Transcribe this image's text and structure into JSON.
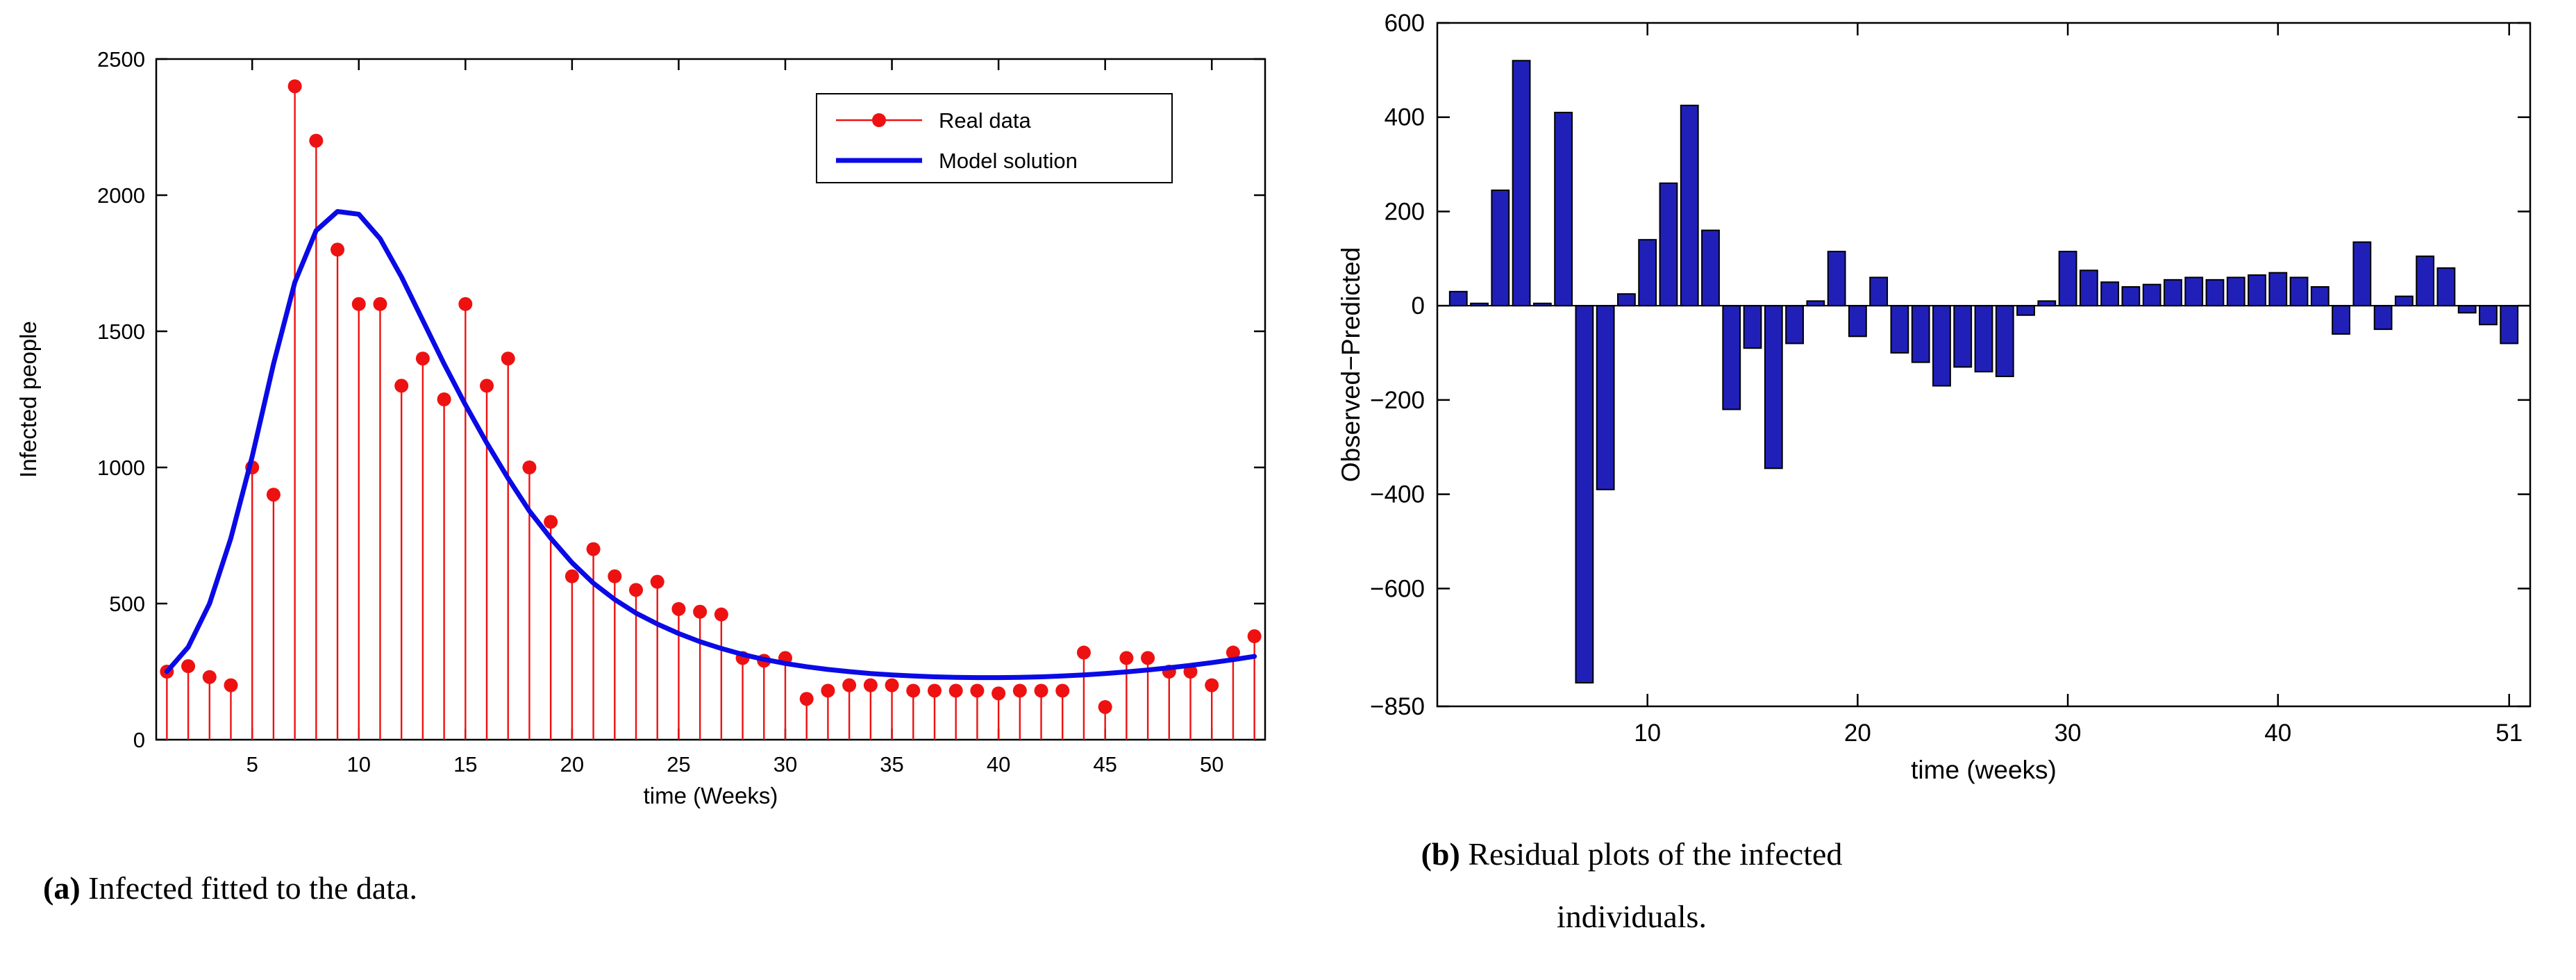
{
  "page": {
    "background": "#ffffff"
  },
  "captions": {
    "a_label": "(a)",
    "a_text": "Infected fitted to the data.",
    "b_label": "(b)",
    "b_text": "Residual plots of the infected",
    "b_text2": "individuals."
  },
  "colors": {
    "real_data": "#ee1111",
    "model_line": "#0a0ae6",
    "bar_fill": "#2020b8",
    "bar_edge": "#000000",
    "axis": "#000000"
  },
  "chart_data": [
    {
      "id": "infected-fit",
      "type": "line",
      "title": "",
      "xlabel": "time (Weeks)",
      "ylabel": "Infected people",
      "xlim": [
        0.5,
        52.5
      ],
      "ylim": [
        0,
        2500
      ],
      "xticks": [
        5,
        10,
        15,
        20,
        25,
        30,
        35,
        40,
        45,
        50
      ],
      "yticks": [
        0,
        500,
        1000,
        1500,
        2000,
        2500
      ],
      "grid": false,
      "legend_position": "top-right",
      "x": [
        1,
        2,
        3,
        4,
        5,
        6,
        7,
        8,
        9,
        10,
        11,
        12,
        13,
        14,
        15,
        16,
        17,
        18,
        19,
        20,
        21,
        22,
        23,
        24,
        25,
        26,
        27,
        28,
        29,
        30,
        31,
        32,
        33,
        34,
        35,
        36,
        37,
        38,
        39,
        40,
        41,
        42,
        43,
        44,
        45,
        46,
        47,
        48,
        49,
        50,
        51,
        52
      ],
      "series": [
        {
          "name": "Real data",
          "style": "stem",
          "color_key": "real_data",
          "values": [
            250,
            270,
            230,
            200,
            1000,
            900,
            2400,
            2200,
            1800,
            1600,
            1600,
            1300,
            1400,
            1250,
            1600,
            1300,
            1400,
            1000,
            800,
            600,
            700,
            600,
            550,
            580,
            480,
            470,
            460,
            300,
            290,
            300,
            150,
            180,
            200,
            200,
            200,
            180,
            180,
            180,
            180,
            170,
            180,
            180,
            180,
            320,
            120,
            300,
            300,
            250,
            250,
            200,
            320,
            380
          ]
        },
        {
          "name": "Model solution",
          "style": "line",
          "color_key": "model_line",
          "values": [
            250,
            340,
            500,
            740,
            1040,
            1380,
            1680,
            1870,
            1940,
            1930,
            1840,
            1700,
            1540,
            1380,
            1230,
            1090,
            960,
            840,
            740,
            650,
            575,
            515,
            465,
            425,
            390,
            360,
            335,
            313,
            295,
            280,
            268,
            258,
            250,
            243,
            238,
            234,
            231,
            229,
            228,
            228,
            229,
            231,
            234,
            238,
            243,
            249,
            256,
            264,
            273,
            283,
            294,
            306
          ]
        }
      ]
    },
    {
      "id": "residuals",
      "type": "bar",
      "title": "",
      "xlabel": "time (weeks)",
      "ylabel": "Observed−Predicted",
      "xlim": [
        0,
        52
      ],
      "ylim": [
        -850,
        600
      ],
      "xticks": [
        10,
        20,
        30,
        40,
        51
      ],
      "yticks": [
        600,
        400,
        200,
        0,
        -200,
        -400,
        -600,
        -850
      ],
      "grid": false,
      "x": [
        1,
        2,
        3,
        4,
        5,
        6,
        7,
        8,
        9,
        10,
        11,
        12,
        13,
        14,
        15,
        16,
        17,
        18,
        19,
        20,
        21,
        22,
        23,
        24,
        25,
        26,
        27,
        28,
        29,
        30,
        31,
        32,
        33,
        34,
        35,
        36,
        37,
        38,
        39,
        40,
        41,
        42,
        43,
        44,
        45,
        46,
        47,
        48,
        49,
        50,
        51
      ],
      "values": [
        30,
        5,
        245,
        520,
        5,
        410,
        -800,
        -390,
        25,
        140,
        260,
        425,
        160,
        -220,
        -90,
        -345,
        -80,
        10,
        115,
        -65,
        60,
        -100,
        -120,
        -170,
        -130,
        -140,
        -150,
        -20,
        10,
        115,
        75,
        50,
        40,
        45,
        55,
        60,
        55,
        60,
        65,
        70,
        60,
        40,
        -60,
        135,
        -50,
        20,
        105,
        80,
        -15,
        -40,
        -80
      ]
    }
  ]
}
